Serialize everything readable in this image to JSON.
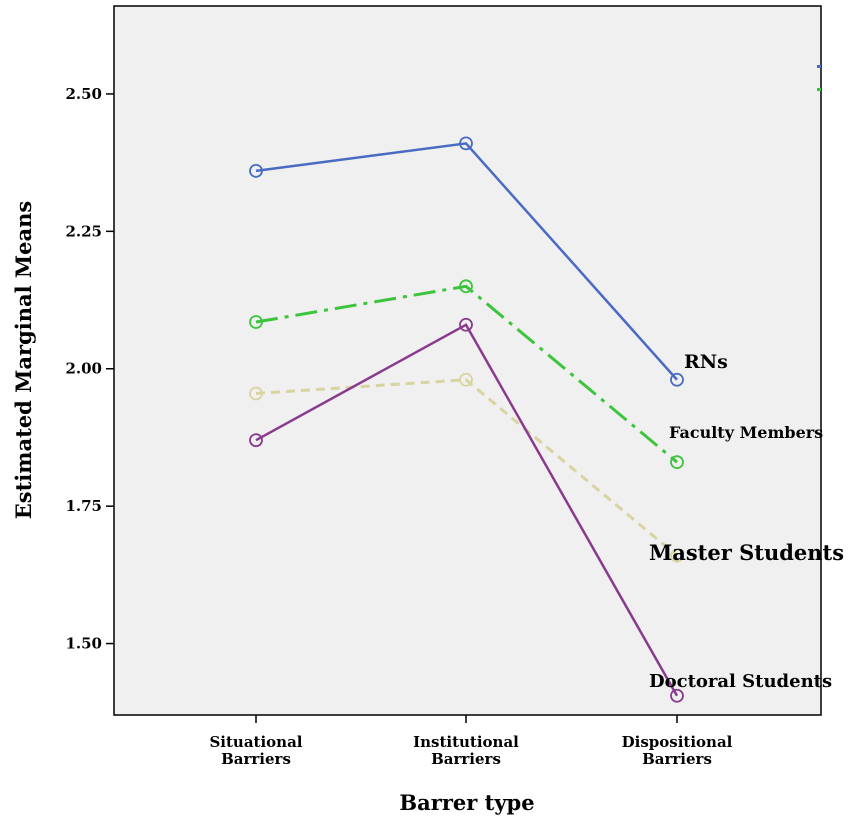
{
  "chart_data": {
    "type": "line",
    "xlabel": "Barrer type",
    "ylabel": "Estimated Marginal Means",
    "categories": [
      "Situational Barriers",
      "Institutional Barriers",
      "Dispositional Barriers"
    ],
    "category_lines": [
      [
        "Situational",
        "Barriers"
      ],
      [
        "Institutional",
        "Barriers"
      ],
      [
        "Dispositional",
        "Barriers"
      ]
    ],
    "ylim": [
      1.37,
      2.66
    ],
    "yticks": [
      1.5,
      1.75,
      2.0,
      2.25,
      2.5
    ],
    "ytick_labels": [
      "1.50",
      "1.75",
      "2.00",
      "2.25",
      "2.50"
    ],
    "grid": false,
    "series": [
      {
        "name": "RNs",
        "values": [
          2.36,
          2.41,
          1.98
        ],
        "color": "#4a6bc4",
        "dash": "solid"
      },
      {
        "name": "Faculty Members",
        "values": [
          2.085,
          2.15,
          1.83
        ],
        "color": "#3dc43d",
        "dash": "dashdot"
      },
      {
        "name": "Master Students",
        "values": [
          1.955,
          1.98,
          1.66
        ],
        "color": "#d8d4a0",
        "dash": "dashed"
      },
      {
        "name": "Doctoral Students",
        "values": [
          1.87,
          2.08,
          1.405
        ],
        "color": "#8a3a8e",
        "dash": "solid"
      }
    ]
  }
}
